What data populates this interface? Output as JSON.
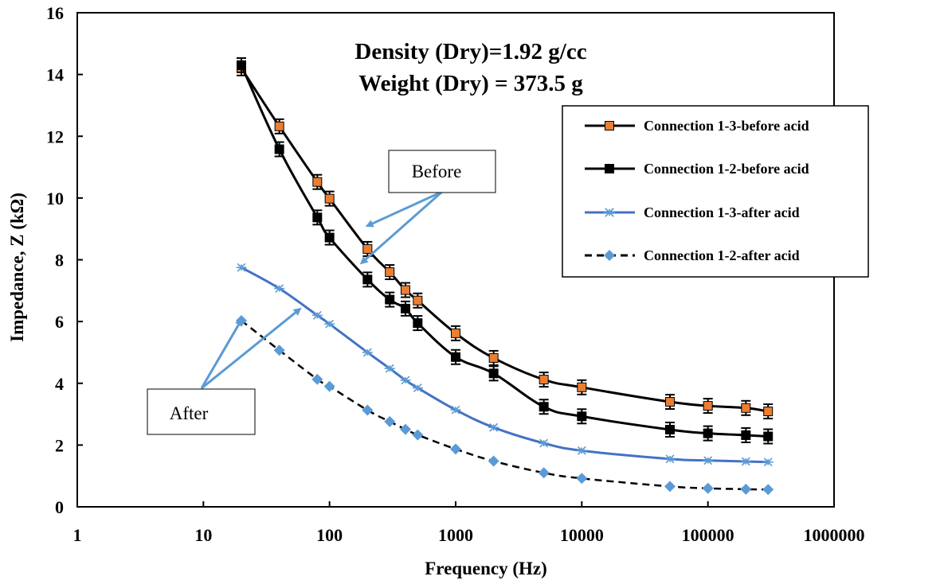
{
  "chart_data": {
    "type": "scatter",
    "x_scale": "log",
    "title_lines": [
      "Density (Dry)=1.92 g/cc",
      "Weight (Dry) = 373.5 g"
    ],
    "xlabel": "Frequency (Hz)",
    "ylabel": "Impedance, Z (kΩ)",
    "xlim": [
      1,
      1000000
    ],
    "ylim": [
      0,
      16
    ],
    "x_ticks": [
      1,
      10,
      100,
      1000,
      10000,
      100000,
      1000000
    ],
    "x_tick_labels": [
      "1",
      "10",
      "100",
      "1000",
      "10000",
      "100000",
      "1000000"
    ],
    "y_ticks": [
      0,
      2,
      4,
      6,
      8,
      10,
      12,
      14,
      16
    ],
    "y_tick_labels": [
      "0",
      "2",
      "4",
      "6",
      "8",
      "10",
      "12",
      "14",
      "16"
    ],
    "grid": false,
    "legend_position": "top-right",
    "x": [
      20,
      40,
      80,
      100,
      200,
      300,
      400,
      500,
      1000,
      2000,
      5000,
      10000,
      50000,
      100000,
      200000,
      300000
    ],
    "series": [
      {
        "name": "Connection 1-3-before acid",
        "color": "#ed7d31",
        "line_color": "#000000",
        "marker": "square",
        "line_style": "solid",
        "error_bars": true,
        "values": [
          14.2,
          12.32,
          10.52,
          9.98,
          8.35,
          7.6,
          7.02,
          6.68,
          5.62,
          4.82,
          4.12,
          3.87,
          3.4,
          3.27,
          3.2,
          3.09
        ]
      },
      {
        "name": "Connection 1-2-before acid",
        "color": "#000000",
        "line_color": "#000000",
        "marker": "square",
        "line_style": "solid",
        "error_bars": true,
        "values": [
          14.3,
          11.58,
          9.37,
          8.72,
          7.36,
          6.71,
          6.42,
          5.95,
          4.85,
          4.32,
          3.24,
          2.93,
          2.5,
          2.38,
          2.32,
          2.28
        ]
      },
      {
        "name": "Connection 1-3-after acid",
        "color": "#5b9bd5",
        "line_color": "#4472c4",
        "marker": "star",
        "line_style": "solid",
        "error_bars": false,
        "values": [
          7.75,
          7.07,
          6.2,
          5.92,
          5.0,
          4.48,
          4.1,
          3.85,
          3.14,
          2.57,
          2.06,
          1.82,
          1.55,
          1.5,
          1.47,
          1.45
        ]
      },
      {
        "name": "Connection 1-2-after acid",
        "color": "#5b9bd5",
        "line_color": "#000000",
        "marker": "diamond",
        "line_style": "dashed",
        "error_bars": false,
        "values": [
          6.03,
          5.07,
          4.13,
          3.9,
          3.13,
          2.76,
          2.51,
          2.33,
          1.87,
          1.48,
          1.1,
          0.92,
          0.66,
          0.6,
          0.57,
          0.56
        ]
      }
    ],
    "annotations": [
      {
        "label": "Before",
        "arrow_targets": [
          [
            200,
            9.1
          ],
          [
            180,
            7.9
          ]
        ]
      },
      {
        "label": "After",
        "arrow_targets": [
          [
            20,
            6.05
          ],
          [
            58,
            6.4
          ]
        ]
      }
    ]
  }
}
